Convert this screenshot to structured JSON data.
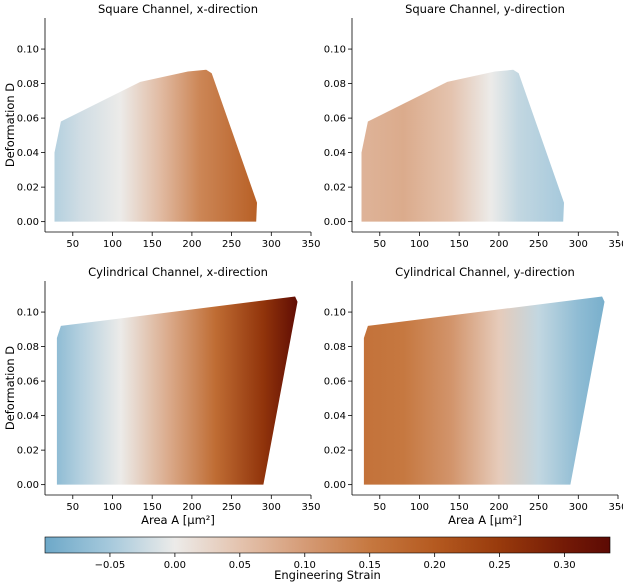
{
  "chart_data": [
    {
      "type": "heatmap",
      "title": "Square Channel, x-direction",
      "xlabel": "",
      "ylabel": "Deformation D",
      "xlim": [
        15,
        350
      ],
      "ylim": [
        -0.006,
        0.118
      ],
      "xticks": [
        50,
        100,
        150,
        200,
        250,
        300,
        350
      ],
      "yticks": [
        0.0,
        0.02,
        0.04,
        0.06,
        0.08,
        0.1
      ],
      "region": [
        [
          27,
          0
        ],
        [
          281,
          0
        ],
        [
          282,
          0.011
        ],
        [
          225,
          0.086
        ],
        [
          218,
          0.088
        ],
        [
          195,
          0.087
        ],
        [
          135,
          0.081
        ],
        [
          35,
          0.058
        ],
        [
          27,
          0.04
        ]
      ],
      "strain_gradient": {
        "direction": "x",
        "x": [
          27,
          60,
          110,
          160,
          210,
          282
        ],
        "strain": [
          -0.04,
          -0.02,
          0.0,
          0.06,
          0.13,
          0.19
        ]
      }
    },
    {
      "type": "heatmap",
      "title": "Square Channel, y-direction",
      "xlabel": "",
      "ylabel": "",
      "xlim": [
        15,
        350
      ],
      "ylim": [
        -0.006,
        0.118
      ],
      "xticks": [
        50,
        100,
        150,
        200,
        250,
        300,
        350
      ],
      "yticks": [
        0.0,
        0.02,
        0.04,
        0.06,
        0.08,
        0.1
      ],
      "region": [
        [
          27,
          0
        ],
        [
          281,
          0
        ],
        [
          282,
          0.011
        ],
        [
          225,
          0.086
        ],
        [
          218,
          0.088
        ],
        [
          195,
          0.087
        ],
        [
          135,
          0.081
        ],
        [
          35,
          0.058
        ],
        [
          27,
          0.04
        ]
      ],
      "strain_gradient": {
        "direction": "x",
        "x": [
          27,
          80,
          140,
          190,
          225,
          282
        ],
        "strain": [
          0.07,
          0.08,
          0.05,
          0.0,
          -0.03,
          -0.05
        ]
      }
    },
    {
      "type": "heatmap",
      "title": "Cylindrical Channel, x-direction",
      "xlabel": "Area A [µm²]",
      "ylabel": "Deformation D",
      "xlim": [
        15,
        350
      ],
      "ylim": [
        -0.006,
        0.118
      ],
      "xticks": [
        50,
        100,
        150,
        200,
        250,
        300,
        350
      ],
      "yticks": [
        0.0,
        0.02,
        0.04,
        0.06,
        0.08,
        0.1
      ],
      "region": [
        [
          30,
          0
        ],
        [
          290,
          0
        ],
        [
          333,
          0.106
        ],
        [
          330,
          0.109
        ],
        [
          35,
          0.092
        ],
        [
          30,
          0.085
        ]
      ],
      "strain_gradient": {
        "direction": "x",
        "x": [
          30,
          60,
          110,
          170,
          230,
          290,
          334
        ],
        "strain": [
          -0.07,
          -0.04,
          0.0,
          0.08,
          0.17,
          0.26,
          0.33
        ]
      }
    },
    {
      "type": "heatmap",
      "title": "Cylindrical Channel, y-direction",
      "xlabel": "Area A [µm²]",
      "ylabel": "",
      "xlim": [
        15,
        350
      ],
      "ylim": [
        -0.006,
        0.118
      ],
      "xticks": [
        50,
        100,
        150,
        200,
        250,
        300,
        350
      ],
      "yticks": [
        0.0,
        0.02,
        0.04,
        0.06,
        0.08,
        0.1
      ],
      "region": [
        [
          30,
          0
        ],
        [
          290,
          0
        ],
        [
          333,
          0.106
        ],
        [
          330,
          0.109
        ],
        [
          35,
          0.092
        ],
        [
          30,
          0.085
        ]
      ],
      "strain_gradient": {
        "direction": "x",
        "x": [
          30,
          80,
          140,
          200,
          250,
          300,
          334
        ],
        "strain": [
          0.16,
          0.15,
          0.11,
          0.04,
          -0.03,
          -0.07,
          -0.09
        ]
      }
    }
  ],
  "colorbar": {
    "label": "Engineering Strain",
    "range": [
      -0.1,
      0.335
    ],
    "ticks": [
      -0.05,
      0.0,
      0.05,
      0.1,
      0.15,
      0.2,
      0.25,
      0.3
    ],
    "tick_labels": [
      "−0.05",
      "0.00",
      "0.05",
      "0.10",
      "0.15",
      "0.20",
      "0.25",
      "0.30"
    ],
    "color_stops": [
      {
        "value": -0.1,
        "color": "#6da8c8"
      },
      {
        "value": -0.05,
        "color": "#a6c9dc"
      },
      {
        "value": 0.0,
        "color": "#ecebe9"
      },
      {
        "value": 0.05,
        "color": "#e4c3ae"
      },
      {
        "value": 0.1,
        "color": "#d59b76"
      },
      {
        "value": 0.15,
        "color": "#c67840"
      },
      {
        "value": 0.2,
        "color": "#b55a20"
      },
      {
        "value": 0.25,
        "color": "#983a0c"
      },
      {
        "value": 0.3,
        "color": "#741a06"
      },
      {
        "value": 0.335,
        "color": "#5c0a04"
      }
    ]
  }
}
